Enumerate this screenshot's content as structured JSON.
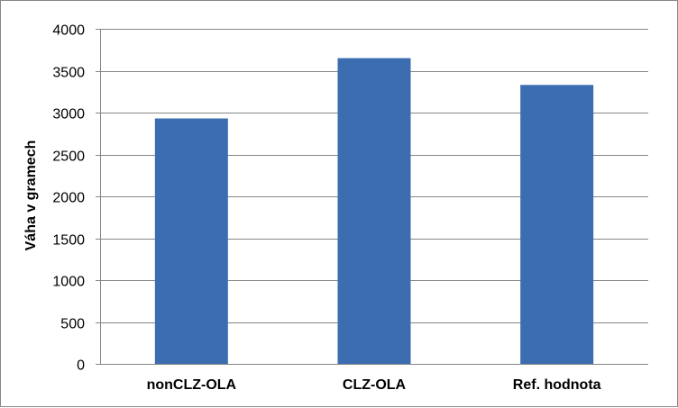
{
  "chart_data": {
    "type": "bar",
    "categories": [
      "nonCLZ-OLA",
      "CLZ-OLA",
      "Ref. hodnota"
    ],
    "values": [
      2930,
      3650,
      3330
    ],
    "title": "",
    "xlabel": "",
    "ylabel": "Váha v gramech",
    "ylim": [
      0,
      4000
    ],
    "yticks": [
      0,
      500,
      1000,
      1500,
      2000,
      2500,
      3000,
      3500,
      4000
    ],
    "grid": true,
    "legend": "none",
    "bar_color": "#3c6db1",
    "grid_color": "#868686"
  }
}
